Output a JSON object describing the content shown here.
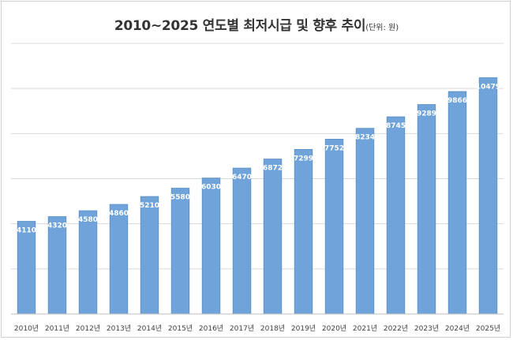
{
  "chart_data": {
    "type": "bar",
    "title": "2010~2025 연도별 최저시급 및 향후 추이",
    "unit_note": "(단위: 원)",
    "categories": [
      "2010년",
      "2011년",
      "2012년",
      "2013년",
      "2014년",
      "2015년",
      "2016년",
      "2017년",
      "2018년",
      "2019년",
      "2020년",
      "2021년",
      "2022년",
      "2023년",
      "2024년",
      "2025년"
    ],
    "values": [
      4110,
      4320,
      4580,
      4860,
      5210,
      5580,
      6030,
      6470,
      6872,
      7299,
      7752,
      8234,
      8745,
      9289,
      9866,
      10479
    ],
    "data_labels": [
      "4110",
      "4320",
      "4580",
      "4860",
      "5210",
      "5580",
      "6030",
      "6470",
      "6872",
      "7299",
      "7752",
      "8234",
      "8745",
      "9289",
      "9866",
      "10479"
    ],
    "ylim": [
      0,
      12000
    ],
    "ytick_step": 2000,
    "show_ytick_labels": false,
    "grid": true,
    "bar_color": "#6fa3d9",
    "bar_edge_color": "#5b8fc6",
    "grid_color": "#d9d9d9",
    "label_color": "#ffffff"
  }
}
